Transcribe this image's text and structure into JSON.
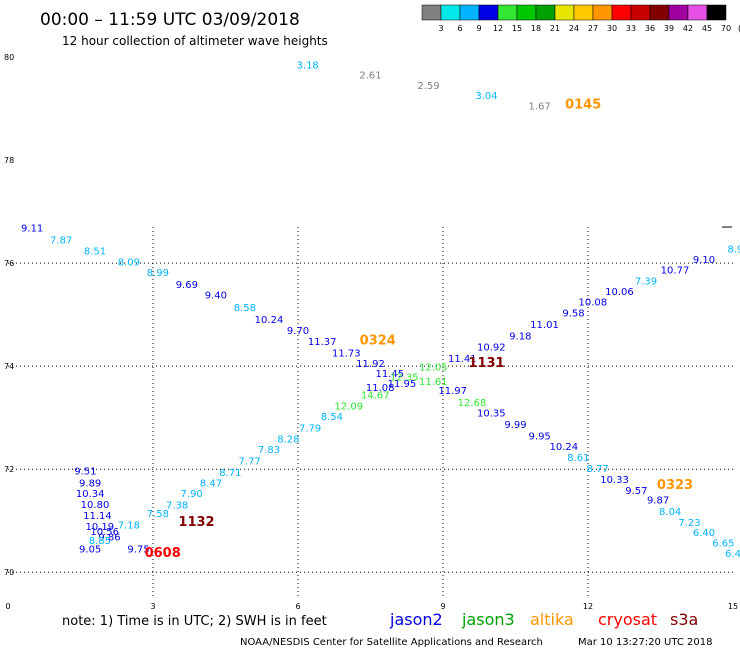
{
  "header": {
    "title": "00:00 – 11:59 UTC 03/09/2018",
    "subtitle": "12 hour collection of altimeter wave heights"
  },
  "legend": {
    "unit": "(ft)",
    "bins": [
      {
        "label": "3",
        "color": "#808080"
      },
      {
        "label": "6",
        "color": "#00e8e8"
      },
      {
        "label": "9",
        "color": "#00b4ff"
      },
      {
        "label": "12",
        "color": "#0000e6"
      },
      {
        "label": "15",
        "color": "#32e632"
      },
      {
        "label": "18",
        "color": "#00c800"
      },
      {
        "label": "21",
        "color": "#00a000"
      },
      {
        "label": "24",
        "color": "#e6e600"
      },
      {
        "label": "27",
        "color": "#ffc800"
      },
      {
        "label": "30",
        "color": "#ff9600"
      },
      {
        "label": "33",
        "color": "#ff0000"
      },
      {
        "label": "36",
        "color": "#c80000"
      },
      {
        "label": "39",
        "color": "#820000"
      },
      {
        "label": "42",
        "color": "#a000a0"
      },
      {
        "label": "45",
        "color": "#e650e6"
      },
      {
        "label": "70",
        "color": "#000000"
      }
    ]
  },
  "chart_data": {
    "type": "scatter",
    "xlim": [
      0,
      15
    ],
    "ylim": [
      69.5,
      80
    ],
    "x_ticks": [
      "0",
      "3",
      "6",
      "9",
      "12",
      "15"
    ],
    "y_ticks": [
      "70",
      "72",
      "74",
      "76",
      "78",
      "80"
    ],
    "grid": true,
    "labels": [
      {
        "x": 6.2,
        "y": 79.78,
        "text": "3.18",
        "color": "#00b4ff"
      },
      {
        "x": 7.5,
        "y": 79.58,
        "text": "2.61",
        "color": "#808080"
      },
      {
        "x": 8.7,
        "y": 79.38,
        "text": "2.59",
        "color": "#808080"
      },
      {
        "x": 9.9,
        "y": 79.18,
        "text": "3.04",
        "color": "#00b4ff"
      },
      {
        "x": 11.0,
        "y": 78.98,
        "text": "1.67",
        "color": "#808080"
      },
      {
        "x": 0.5,
        "y": 76.61,
        "text": "9.11",
        "color": "#0000e6"
      },
      {
        "x": 1.1,
        "y": 76.38,
        "text": "7.87",
        "color": "#00b4ff"
      },
      {
        "x": 1.8,
        "y": 76.17,
        "text": "8.51",
        "color": "#00b4ff"
      },
      {
        "x": 2.5,
        "y": 75.95,
        "text": "8.09",
        "color": "#00b4ff"
      },
      {
        "x": 3.1,
        "y": 75.75,
        "text": "8.99",
        "color": "#00b4ff"
      },
      {
        "x": 3.7,
        "y": 75.52,
        "text": "9.69",
        "color": "#0000e6"
      },
      {
        "x": 4.3,
        "y": 75.31,
        "text": "9.40",
        "color": "#0000e6"
      },
      {
        "x": 4.9,
        "y": 75.07,
        "text": "8.58",
        "color": "#00b4ff"
      },
      {
        "x": 5.4,
        "y": 74.84,
        "text": "10.24",
        "color": "#0000e6"
      },
      {
        "x": 6.0,
        "y": 74.62,
        "text": "9.70",
        "color": "#0000e6"
      },
      {
        "x": 6.5,
        "y": 74.41,
        "text": "11.37",
        "color": "#0000e6"
      },
      {
        "x": 7.0,
        "y": 74.19,
        "text": "11.73",
        "color": "#0000e6"
      },
      {
        "x": 7.5,
        "y": 73.98,
        "text": "11.92",
        "color": "#0000e6"
      },
      {
        "x": 7.9,
        "y": 73.79,
        "text": "11.45",
        "color": "#0000e6"
      },
      {
        "x": 8.15,
        "y": 73.6,
        "text": "11.95",
        "color": "#0000e6"
      },
      {
        "x": 7.7,
        "y": 73.52,
        "text": "11.08",
        "color": "#0000e6"
      },
      {
        "x": 8.2,
        "y": 73.72,
        "text": "12.35",
        "color": "#32e632"
      },
      {
        "x": 8.8,
        "y": 73.92,
        "text": "12.05",
        "color": "#32e632"
      },
      {
        "x": 8.8,
        "y": 73.63,
        "text": "11.61",
        "color": "#32e632"
      },
      {
        "x": 9.4,
        "y": 74.08,
        "text": "11.41",
        "color": "#0000e6"
      },
      {
        "x": 10.0,
        "y": 74.3,
        "text": "10.92",
        "color": "#0000e6"
      },
      {
        "x": 10.6,
        "y": 74.52,
        "text": "9.18",
        "color": "#0000e6"
      },
      {
        "x": 11.1,
        "y": 74.74,
        "text": "11.01",
        "color": "#0000e6"
      },
      {
        "x": 11.7,
        "y": 74.96,
        "text": "9.58",
        "color": "#0000e6"
      },
      {
        "x": 12.1,
        "y": 75.18,
        "text": "10.08",
        "color": "#0000e6"
      },
      {
        "x": 12.65,
        "y": 75.38,
        "text": "10.06",
        "color": "#0000e6"
      },
      {
        "x": 13.2,
        "y": 75.58,
        "text": "7.39",
        "color": "#00b4ff"
      },
      {
        "x": 13.8,
        "y": 75.8,
        "text": "10.77",
        "color": "#0000e6"
      },
      {
        "x": 14.4,
        "y": 76.0,
        "text": "9.10",
        "color": "#0000e6"
      },
      {
        "x": 15.05,
        "y": 76.21,
        "text": "8.9",
        "color": "#00b4ff"
      },
      {
        "x": 9.2,
        "y": 73.46,
        "text": "11.97",
        "color": "#0000e6"
      },
      {
        "x": 9.6,
        "y": 73.23,
        "text": "12.68",
        "color": "#32e632"
      },
      {
        "x": 10.0,
        "y": 73.02,
        "text": "10.35",
        "color": "#0000e6"
      },
      {
        "x": 10.5,
        "y": 72.8,
        "text": "9.99",
        "color": "#0000e6"
      },
      {
        "x": 11.0,
        "y": 72.58,
        "text": "9.95",
        "color": "#0000e6"
      },
      {
        "x": 11.5,
        "y": 72.37,
        "text": "10.24",
        "color": "#0000e6"
      },
      {
        "x": 11.8,
        "y": 72.16,
        "text": "8.61",
        "color": "#00b4ff"
      },
      {
        "x": 12.2,
        "y": 71.95,
        "text": "8.77",
        "color": "#00b4ff"
      },
      {
        "x": 12.55,
        "y": 71.73,
        "text": "10.33",
        "color": "#0000e6"
      },
      {
        "x": 13.0,
        "y": 71.52,
        "text": "9.57",
        "color": "#0000e6"
      },
      {
        "x": 13.45,
        "y": 71.33,
        "text": "9.87",
        "color": "#0000e6"
      },
      {
        "x": 13.7,
        "y": 71.11,
        "text": "8.04",
        "color": "#00b4ff"
      },
      {
        "x": 14.1,
        "y": 70.9,
        "text": "7.23",
        "color": "#00b4ff"
      },
      {
        "x": 14.4,
        "y": 70.7,
        "text": "6.40",
        "color": "#00b4ff"
      },
      {
        "x": 14.8,
        "y": 70.5,
        "text": "6.65",
        "color": "#00b4ff"
      },
      {
        "x": 15.0,
        "y": 70.3,
        "text": "6.4",
        "color": "#00b4ff"
      },
      {
        "x": 1.6,
        "y": 71.9,
        "text": "9.51",
        "color": "#0000e6"
      },
      {
        "x": 1.7,
        "y": 71.66,
        "text": "9.89",
        "color": "#0000e6"
      },
      {
        "x": 1.7,
        "y": 71.46,
        "text": "10.34",
        "color": "#0000e6"
      },
      {
        "x": 1.8,
        "y": 71.25,
        "text": "10.80",
        "color": "#0000e6"
      },
      {
        "x": 1.85,
        "y": 71.03,
        "text": "11.14",
        "color": "#0000e6"
      },
      {
        "x": 1.9,
        "y": 70.82,
        "text": "10.19",
        "color": "#0000e6"
      },
      {
        "x": 2.0,
        "y": 70.72,
        "text": "10.56",
        "color": "#0000e6"
      },
      {
        "x": 2.1,
        "y": 70.62,
        "text": "9.86",
        "color": "#0000e6"
      },
      {
        "x": 1.9,
        "y": 70.55,
        "text": "8.85",
        "color": "#00b4ff"
      },
      {
        "x": 1.7,
        "y": 70.38,
        "text": "9.05",
        "color": "#0000e6"
      },
      {
        "x": 2.5,
        "y": 70.85,
        "text": "7.18",
        "color": "#00b4ff"
      },
      {
        "x": 2.7,
        "y": 70.38,
        "text": "9.75",
        "color": "#0000e6"
      },
      {
        "x": 3.1,
        "y": 71.07,
        "text": "7.58",
        "color": "#00b4ff"
      },
      {
        "x": 3.5,
        "y": 71.24,
        "text": "7.38",
        "color": "#00b4ff"
      },
      {
        "x": 3.8,
        "y": 71.46,
        "text": "7.90",
        "color": "#00b4ff"
      },
      {
        "x": 4.2,
        "y": 71.66,
        "text": "8.47",
        "color": "#00b4ff"
      },
      {
        "x": 4.6,
        "y": 71.87,
        "text": "8.71",
        "color": "#00b4ff"
      },
      {
        "x": 5.0,
        "y": 72.09,
        "text": "7.77",
        "color": "#00b4ff"
      },
      {
        "x": 5.4,
        "y": 72.31,
        "text": "7.83",
        "color": "#00b4ff"
      },
      {
        "x": 5.8,
        "y": 72.52,
        "text": "8.28",
        "color": "#00b4ff"
      },
      {
        "x": 6.25,
        "y": 72.73,
        "text": "7.79",
        "color": "#00b4ff"
      },
      {
        "x": 6.7,
        "y": 72.95,
        "text": "8.54",
        "color": "#00b4ff"
      },
      {
        "x": 7.05,
        "y": 73.16,
        "text": "12.09",
        "color": "#32e632"
      },
      {
        "x": 7.6,
        "y": 73.37,
        "text": "14.67",
        "color": "#32e632"
      }
    ],
    "passes": [
      {
        "x": 11.9,
        "y": 79.0,
        "text": "0145",
        "color": "#ff9600"
      },
      {
        "x": 7.65,
        "y": 74.42,
        "text": "0324",
        "color": "#ff9600"
      },
      {
        "x": 9.9,
        "y": 73.98,
        "text": "1131",
        "color": "#820000"
      },
      {
        "x": 3.9,
        "y": 70.9,
        "text": "1132",
        "color": "#820000"
      },
      {
        "x": 3.2,
        "y": 70.3,
        "text": "0608",
        "color": "#ff0000"
      },
      {
        "x": 13.8,
        "y": 71.62,
        "text": "0323",
        "color": "#ff9600"
      }
    ]
  },
  "footer": {
    "note": "note:  1) Time is in UTC;  2) SWH is in feet",
    "satellites": [
      {
        "name": "jason2",
        "color": "#0000e6"
      },
      {
        "name": "jason3",
        "color": "#00a000"
      },
      {
        "name": "altika",
        "color": "#ff9600"
      },
      {
        "name": "cryosat",
        "color": "#ff0000"
      },
      {
        "name": "s3a",
        "color": "#820000"
      }
    ],
    "credit": "NOAA/NESDIS Center for Satellite Applications and Research",
    "timestamp": "Mar 10 13:27:20 UTC 2018"
  }
}
